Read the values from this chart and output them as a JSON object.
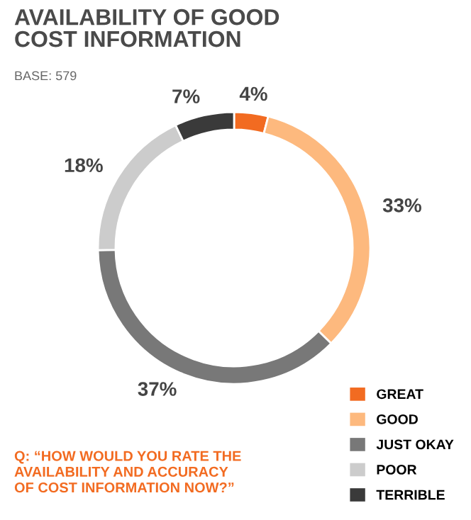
{
  "chart_data": {
    "type": "donut",
    "title": "AVAILABILITY OF GOOD\nCOST INFORMATION",
    "subtitle": "BASE: 579",
    "categories": [
      "GREAT",
      "GOOD",
      "JUST OKAY",
      "POOR",
      "TERRIBLE"
    ],
    "values": [
      4,
      33,
      37,
      18,
      7
    ],
    "value_labels": [
      "4%",
      "33%",
      "37%",
      "18%",
      "7%"
    ],
    "colors": [
      "#f26b21",
      "#fdb97e",
      "#787878",
      "#cccccc",
      "#3a3a3a"
    ],
    "legend": "bottom right",
    "annotations": [
      "Q: “HOW WOULD YOU RATE THE\nAVAILABILITY AND ACCURACY\nOF COST INFORMATION NOW?”"
    ]
  }
}
